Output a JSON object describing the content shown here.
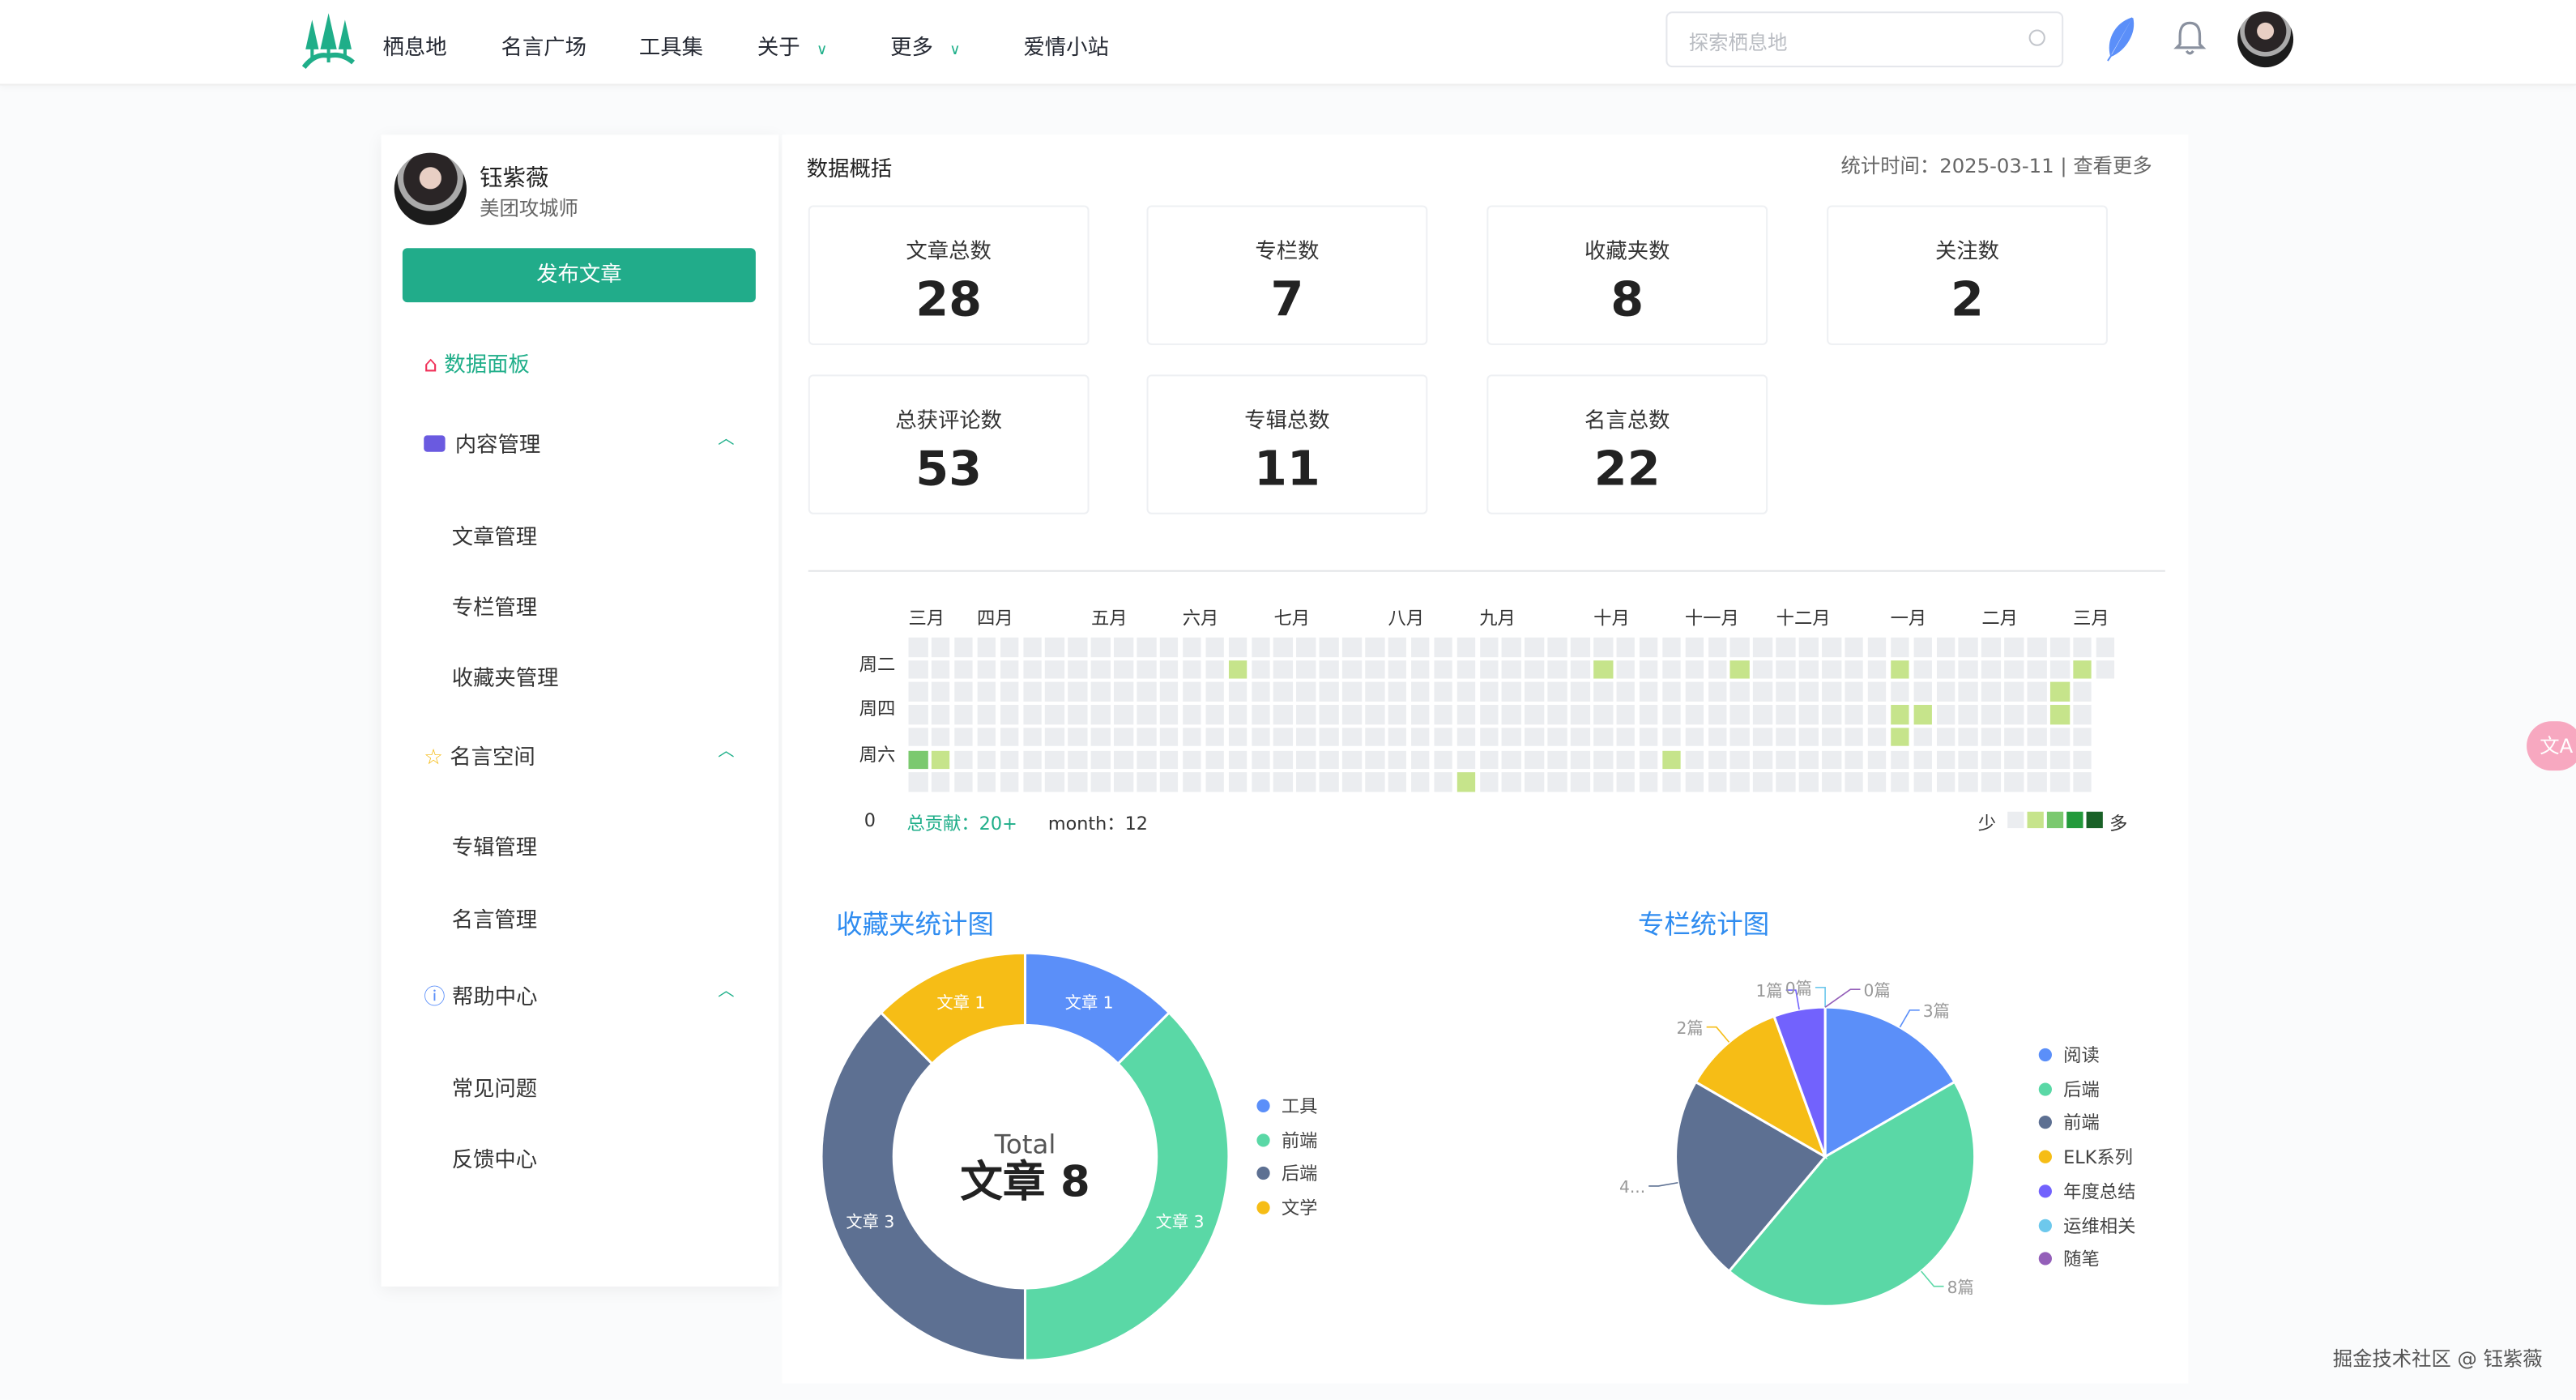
{
  "header": {
    "nav": [
      {
        "label": "栖息地"
      },
      {
        "label": "名言广场"
      },
      {
        "label": "工具集"
      },
      {
        "label": "关于",
        "dropdown": true
      },
      {
        "label": "更多",
        "dropdown": true
      },
      {
        "label": "爱情小站"
      }
    ],
    "search_placeholder": "探索栖息地",
    "icons": [
      "tree-logo-icon",
      "feather-icon",
      "bell-icon",
      "avatar"
    ]
  },
  "sidebar": {
    "user_name": "钰紫薇",
    "user_title": "美团攻城师",
    "publish_label": "发布文章",
    "active": "数据面板",
    "groups": [
      {
        "label": "内容管理",
        "items": [
          "文章管理",
          "专栏管理",
          "收藏夹管理"
        ]
      },
      {
        "label": "名言空间",
        "items": [
          "专辑管理",
          "名言管理"
        ]
      },
      {
        "label": "帮助中心",
        "items": [
          "常见问题",
          "反馈中心"
        ]
      }
    ]
  },
  "overview": {
    "title": "数据概括",
    "stat_time": "统计时间：2025-03-11 | 查看更多",
    "cards": [
      {
        "label": "文章总数",
        "value": "28"
      },
      {
        "label": "专栏数",
        "value": "7"
      },
      {
        "label": "收藏夹数",
        "value": "8"
      },
      {
        "label": "关注数",
        "value": "2"
      },
      {
        "label": "总获评论数",
        "value": "53"
      },
      {
        "label": "专辑总数",
        "value": "11"
      },
      {
        "label": "名言总数",
        "value": "22"
      }
    ]
  },
  "heatmap": {
    "months": [
      {
        "label": "三月",
        "week": 0
      },
      {
        "label": "四月",
        "week": 3
      },
      {
        "label": "五月",
        "week": 8
      },
      {
        "label": "六月",
        "week": 12
      },
      {
        "label": "七月",
        "week": 16
      },
      {
        "label": "八月",
        "week": 21
      },
      {
        "label": "九月",
        "week": 25
      },
      {
        "label": "十月",
        "week": 30
      },
      {
        "label": "十一月",
        "week": 34
      },
      {
        "label": "十二月",
        "week": 38
      },
      {
        "label": "一月",
        "week": 43
      },
      {
        "label": "二月",
        "week": 47
      },
      {
        "label": "三月",
        "week": 51
      }
    ],
    "day_labels": [
      {
        "label": "周二",
        "day": 1
      },
      {
        "label": "周四",
        "day": 3
      },
      {
        "label": "周六",
        "day": 5
      }
    ],
    "weeks": 53,
    "last_week_days": 2,
    "active_cells": [
      {
        "week": 14,
        "day": 1,
        "level": 1
      },
      {
        "week": 30,
        "day": 1,
        "level": 1
      },
      {
        "week": 36,
        "day": 1,
        "level": 1
      },
      {
        "week": 43,
        "day": 1,
        "level": 1
      },
      {
        "week": 51,
        "day": 1,
        "level": 1
      },
      {
        "week": 50,
        "day": 2,
        "level": 1
      },
      {
        "week": 43,
        "day": 3,
        "level": 1
      },
      {
        "week": 44,
        "day": 3,
        "level": 1
      },
      {
        "week": 50,
        "day": 3,
        "level": 1
      },
      {
        "week": 43,
        "day": 4,
        "level": 1
      },
      {
        "week": 0,
        "day": 5,
        "level": 2
      },
      {
        "week": 1,
        "day": 5,
        "level": 1
      },
      {
        "week": 33,
        "day": 5,
        "level": 1
      },
      {
        "week": 24,
        "day": 6,
        "level": 1
      }
    ],
    "level_colors": [
      "#ebedf0",
      "#c6e48b",
      "#7bc96f",
      "#239a3b",
      "#196127"
    ],
    "zero": "0",
    "total": "总贡献：20+",
    "month": "month：12",
    "less": "少",
    "more": "多"
  },
  "chart_data": [
    {
      "type": "pie",
      "variant": "donut",
      "title": "收藏夹统计图",
      "categories": [
        "工具",
        "前端",
        "后端",
        "文学"
      ],
      "values": [
        1,
        3,
        3,
        1
      ],
      "labels": [
        "文章 1",
        "文章 3",
        "文章 3",
        "文章 1"
      ],
      "colors": [
        "#5B8FF9",
        "#5AD8A6",
        "#5D7092",
        "#F6BD16"
      ],
      "center_label": "Total",
      "center_value": "文章 8",
      "legend": "right"
    },
    {
      "type": "pie",
      "title": "专栏统计图",
      "categories": [
        "阅读",
        "后端",
        "前端",
        "ELK系列",
        "年度总结",
        "运维相关",
        "随笔"
      ],
      "values": [
        3,
        8,
        4,
        2,
        1,
        0,
        0
      ],
      "labels": [
        "3篇",
        "8篇",
        "4...",
        "2篇",
        "1篇",
        "0篇",
        "0篇"
      ],
      "colors": [
        "#5B8FF9",
        "#5AD8A6",
        "#5D7092",
        "#F6BD16",
        "#7262FD",
        "#6DC8EC",
        "#945FB9"
      ],
      "legend": "right"
    }
  ],
  "footer": {
    "watermark": "掘金技术社区 @ 钰紫薇"
  },
  "colors": {
    "brand": "#1fae89",
    "title_blue": "#2f8cf0"
  }
}
